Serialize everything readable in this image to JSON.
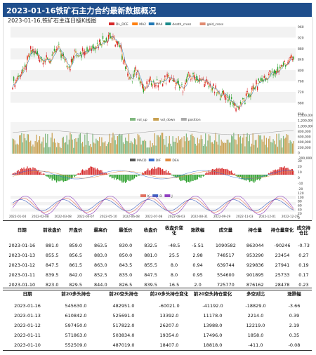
{
  "banner": {
    "title": "2023-01-16铁矿石主力合约最新数据概况"
  },
  "chart": {
    "title": "2023-01-16,铁矿石主连日级K线图",
    "price_legend": [
      "DL_DCE",
      "MA2",
      "MA4",
      "death_cross",
      "gold_cross"
    ],
    "price_ticks": [
      "960",
      "920",
      "880",
      "840",
      "800",
      "760",
      "720",
      "680",
      "640"
    ],
    "vol_legend": [
      "vol_up",
      "vol_down",
      "position"
    ],
    "vol_ticks": [
      "1,400,000",
      "1,200,000",
      "1,000,000",
      "800,000",
      "600,000",
      "400,000",
      "200,000",
      "0",
      "-200,000"
    ],
    "macd_legend": [
      "MACD",
      "DIF",
      "DEA"
    ],
    "macd_ticks": [
      "30",
      "20",
      "10",
      "0",
      "-10",
      "-20"
    ],
    "kdj_legend": [
      "K",
      "D",
      "J"
    ],
    "kdj_ticks": [
      "120",
      "100",
      "80",
      "60",
      "40",
      "20",
      "0"
    ],
    "x_dates": [
      "2022-01-04",
      "2022-02-08",
      "2022-03-08",
      "2022-04-07",
      "2022-05-10",
      "2022-06-08",
      "2022-07-08",
      "2022-08-03",
      "2022-08-31",
      "2022-09-29",
      "2022-11-03",
      "2022-12-01",
      "2022-12-29"
    ],
    "colors": {
      "up": "#d62728",
      "down": "#2ca02c",
      "ma2": "#ff7f0e",
      "ma4": "#1f77b4",
      "vol_up": "#7fb77e",
      "vol_down": "#c8a050",
      "k": "#e07060",
      "d": "#4060c0",
      "j": "#9040c0"
    }
  },
  "table1": {
    "headers": [
      "日期",
      "前收盘价",
      "开盘价",
      "最高价",
      "最低价",
      "收盘价",
      "收盘价变化",
      "涨跌幅",
      "成交量",
      "持仓量",
      "持仓量变化",
      "成交持仓比"
    ],
    "rows": [
      [
        "2023-01-16",
        "881.0",
        "859.0",
        "863.5",
        "830.0",
        "832.5",
        "-48.5",
        "-5.51",
        "1090582",
        "863044",
        "-90246",
        "-0.73"
      ],
      [
        "2023-01-13",
        "855.5",
        "856.5",
        "883.0",
        "850.0",
        "881.0",
        "25.5",
        "2.98",
        "748517",
        "953290",
        "23454",
        "0.27"
      ],
      [
        "2023-01-12",
        "847.5",
        "861.5",
        "863.0",
        "843.5",
        "855.5",
        "8.0",
        "0.94",
        "639744",
        "929836",
        "27941",
        "0.19"
      ],
      [
        "2023-01-11",
        "839.5",
        "842.0",
        "852.5",
        "835.0",
        "847.5",
        "8.0",
        "0.95",
        "554600",
        "901895",
        "25733",
        "0.17"
      ],
      [
        "2023-01-10",
        "823.0",
        "829.5",
        "844.0",
        "826.5",
        "839.5",
        "16.5",
        "2.0",
        "725770",
        "876162",
        "28478",
        "0.23"
      ]
    ]
  },
  "table2": {
    "headers": [
      "日期",
      "前20多头持仓",
      "前20空头持仓",
      "前20多头持仓变化",
      "前20空头持仓变化",
      "多空对比",
      "涨跌幅"
    ],
    "rows": [
      [
        "2023-01-16",
        "545630.0",
        "482951.0",
        "-60021.0",
        "-41192.0",
        "-18829.0",
        "-3.66"
      ],
      [
        "2023-01-13",
        "610842.0",
        "525691.0",
        "13392.0",
        "11178.0",
        "2214.0",
        "0.39"
      ],
      [
        "2023-01-12",
        "597450.0",
        "517822.0",
        "26207.0",
        "13988.0",
        "12219.0",
        "2.19"
      ],
      [
        "2023-01-11",
        "571863.0",
        "503834.0",
        "19354.0",
        "17496.0",
        "1858.0",
        "0.35"
      ],
      [
        "2023-01-10",
        "552509.0",
        "487019.0",
        "18407.0",
        "18818.0",
        "-411.0",
        "-0.08"
      ]
    ]
  }
}
